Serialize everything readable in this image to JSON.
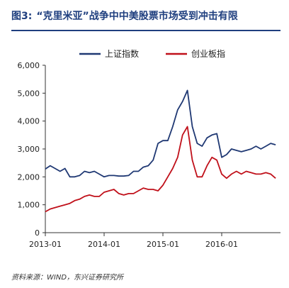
{
  "header": {
    "figure_label": "图3:",
    "title": "“克里米亚”战争中中美股票市场受到冲击有限"
  },
  "source": "资料来源：WIND，东兴证券研究所",
  "colors": {
    "title": "#1f3f7f",
    "series_a": "#1f3873",
    "series_b": "#c0101a",
    "axis": "#333333"
  },
  "chart_data": {
    "type": "line",
    "x_ticks": [
      "2013-01",
      "2014-01",
      "2015-01",
      "2016-01"
    ],
    "x_range": [
      "2013-01",
      "2017-01"
    ],
    "ylim": [
      0,
      6000
    ],
    "y_ticks": [
      "0",
      "1,000",
      "2,000",
      "3,000",
      "4,000",
      "5,000",
      "6,000"
    ],
    "y_tick_values": [
      0,
      1000,
      2000,
      3000,
      4000,
      5000,
      6000
    ],
    "legend_position": "top",
    "grid": false,
    "series": [
      {
        "name": "上证指数",
        "x": [
          "2013-01",
          "2013-02",
          "2013-03",
          "2013-04",
          "2013-05",
          "2013-06",
          "2013-07",
          "2013-08",
          "2013-09",
          "2013-10",
          "2013-11",
          "2013-12",
          "2014-01",
          "2014-02",
          "2014-03",
          "2014-04",
          "2014-05",
          "2014-06",
          "2014-07",
          "2014-08",
          "2014-09",
          "2014-10",
          "2014-11",
          "2014-12",
          "2015-01",
          "2015-02",
          "2015-03",
          "2015-04",
          "2015-05",
          "2015-06",
          "2015-07",
          "2015-08",
          "2015-09",
          "2015-10",
          "2015-11",
          "2015-12",
          "2016-01",
          "2016-02",
          "2016-03",
          "2016-04",
          "2016-05",
          "2016-06",
          "2016-07",
          "2016-08",
          "2016-09",
          "2016-10",
          "2016-11",
          "2016-12"
        ],
        "values": [
          2280,
          2400,
          2300,
          2200,
          2300,
          2000,
          2000,
          2050,
          2200,
          2150,
          2200,
          2100,
          2000,
          2050,
          2050,
          2030,
          2030,
          2050,
          2200,
          2200,
          2350,
          2400,
          2600,
          3200,
          3300,
          3300,
          3800,
          4400,
          4700,
          5100,
          3800,
          3200,
          3100,
          3400,
          3500,
          3550,
          2700,
          2800,
          3000,
          2950,
          2900,
          2950,
          3000,
          3100,
          3000,
          3100,
          3200,
          3150
        ]
      },
      {
        "name": "创业板指",
        "x": [
          "2013-01",
          "2013-02",
          "2013-03",
          "2013-04",
          "2013-05",
          "2013-06",
          "2013-07",
          "2013-08",
          "2013-09",
          "2013-10",
          "2013-11",
          "2013-12",
          "2014-01",
          "2014-02",
          "2014-03",
          "2014-04",
          "2014-05",
          "2014-06",
          "2014-07",
          "2014-08",
          "2014-09",
          "2014-10",
          "2014-11",
          "2014-12",
          "2015-01",
          "2015-02",
          "2015-03",
          "2015-04",
          "2015-05",
          "2015-06",
          "2015-07",
          "2015-08",
          "2015-09",
          "2015-10",
          "2015-11",
          "2015-12",
          "2016-01",
          "2016-02",
          "2016-03",
          "2016-04",
          "2016-05",
          "2016-06",
          "2016-07",
          "2016-08",
          "2016-09",
          "2016-10",
          "2016-11",
          "2016-12"
        ],
        "values": [
          750,
          850,
          900,
          950,
          1000,
          1050,
          1150,
          1200,
          1300,
          1350,
          1300,
          1300,
          1450,
          1500,
          1550,
          1400,
          1350,
          1400,
          1400,
          1500,
          1600,
          1550,
          1550,
          1500,
          1700,
          2000,
          2300,
          2700,
          3500,
          3800,
          2600,
          2000,
          2000,
          2400,
          2700,
          2600,
          2100,
          1950,
          2100,
          2200,
          2100,
          2200,
          2150,
          2100,
          2100,
          2150,
          2100,
          1950
        ]
      }
    ]
  }
}
